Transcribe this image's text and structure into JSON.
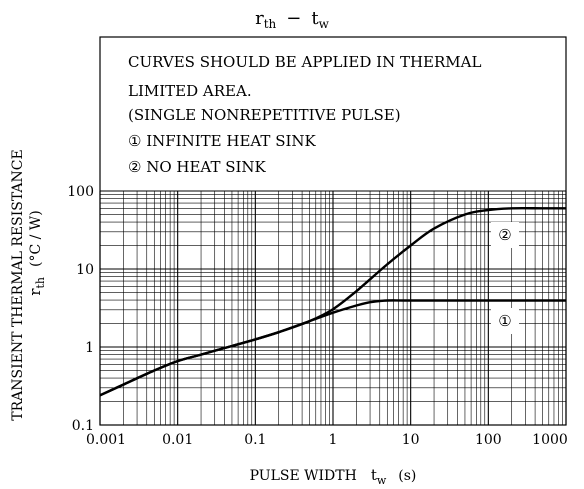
{
  "chart_data": {
    "type": "line",
    "title": "r_th − t_w",
    "title_main": "r",
    "title_sub": "th",
    "title_sep": "−",
    "title_var": "t",
    "title_var_sub": "w",
    "xlabel": "PULSE WIDTH",
    "xlabel_var": "t",
    "xlabel_var_sub": "w",
    "xlabel_unit": "(s)",
    "ylabel": "TRANSIENT THERMAL RESISTANCE",
    "ylabel_var": "r",
    "ylabel_var_sub": "th",
    "ylabel_unit": "(°C / W)",
    "x_scale": "log",
    "y_scale": "log",
    "xlim": [
      0.001,
      1000
    ],
    "ylim": [
      0.1,
      100
    ],
    "grid": true,
    "x_ticks": [
      "0.001",
      "0.01",
      "0.1",
      "1",
      "10",
      "100",
      "1000"
    ],
    "x_tick_values": [
      0.001,
      0.01,
      0.1,
      1,
      10,
      100,
      1000
    ],
    "y_ticks": [
      "0.1",
      "1",
      "10",
      "100"
    ],
    "y_tick_values": [
      0.1,
      1,
      10,
      100
    ],
    "notes": [
      "CURVES SHOULD BE APPLIED IN THERMAL",
      "LIMITED AREA.",
      "(SINGLE NONREPETITIVE PULSE)",
      "①  INFINITE HEAT SINK",
      "②  NO HEAT SINK"
    ],
    "series": [
      {
        "label": "①",
        "x": [
          0.001,
          0.002,
          0.005,
          0.01,
          0.02,
          0.05,
          0.1,
          0.2,
          0.5,
          1,
          2,
          3,
          5,
          10,
          100,
          1000
        ],
        "y": [
          0.24,
          0.33,
          0.5,
          0.66,
          0.8,
          1.03,
          1.25,
          1.55,
          2.15,
          2.75,
          3.4,
          3.75,
          3.95,
          3.95,
          3.95,
          3.95
        ]
      },
      {
        "label": "②",
        "x": [
          0.001,
          0.002,
          0.005,
          0.01,
          0.02,
          0.05,
          0.1,
          0.2,
          0.5,
          1,
          2,
          5,
          10,
          20,
          50,
          100,
          200,
          500,
          1000
        ],
        "y": [
          0.24,
          0.33,
          0.5,
          0.66,
          0.8,
          1.03,
          1.25,
          1.55,
          2.15,
          3.05,
          5.2,
          11.5,
          20,
          33,
          50,
          57,
          60,
          60,
          60
        ]
      }
    ]
  }
}
